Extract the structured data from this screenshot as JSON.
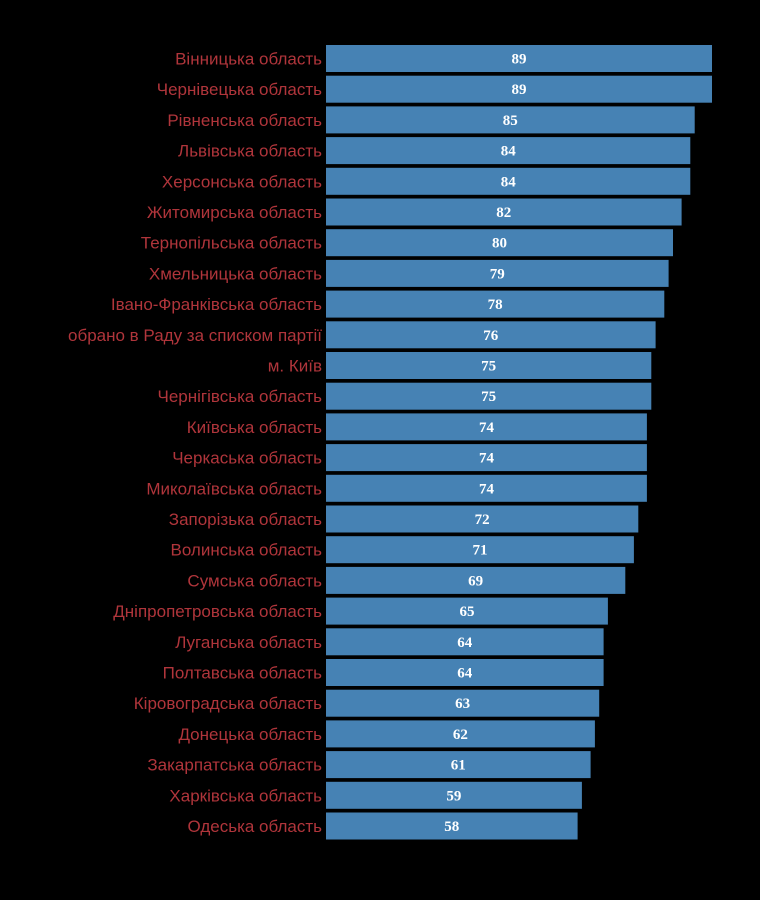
{
  "chart_data": {
    "type": "bar",
    "orientation": "horizontal",
    "categories": [
      "Вінницька область",
      "Чернівецька область",
      "Рівненська область",
      "Львівська область",
      "Херсонська область",
      "Житомирська область",
      "Тернопільська область",
      "Хмельницька область",
      "Івано-Франківська область",
      "обрано в Раду за списком партії",
      "м. Київ",
      "Чернігівська область",
      "Київська область",
      "Черкаська область",
      "Миколаївська область",
      "Запорізька область",
      "Волинська область",
      "Сумська область",
      "Дніпропетровська область",
      "Луганська область",
      "Полтавська область",
      "Кіровоградська область",
      "Донецька область",
      "Закарпатська область",
      "Харківська область",
      "Одеська область"
    ],
    "values": [
      89,
      89,
      85,
      84,
      84,
      82,
      80,
      79,
      78,
      76,
      75,
      75,
      74,
      74,
      74,
      72,
      71,
      69,
      65,
      64,
      64,
      63,
      62,
      61,
      59,
      58
    ],
    "xlim": [
      0,
      89
    ],
    "grid": false,
    "legend": "none",
    "data_labels": true,
    "colors": {
      "background": "#000000",
      "bar": "#4682b4",
      "label": "#b0353b",
      "value": "#ffffff"
    }
  }
}
